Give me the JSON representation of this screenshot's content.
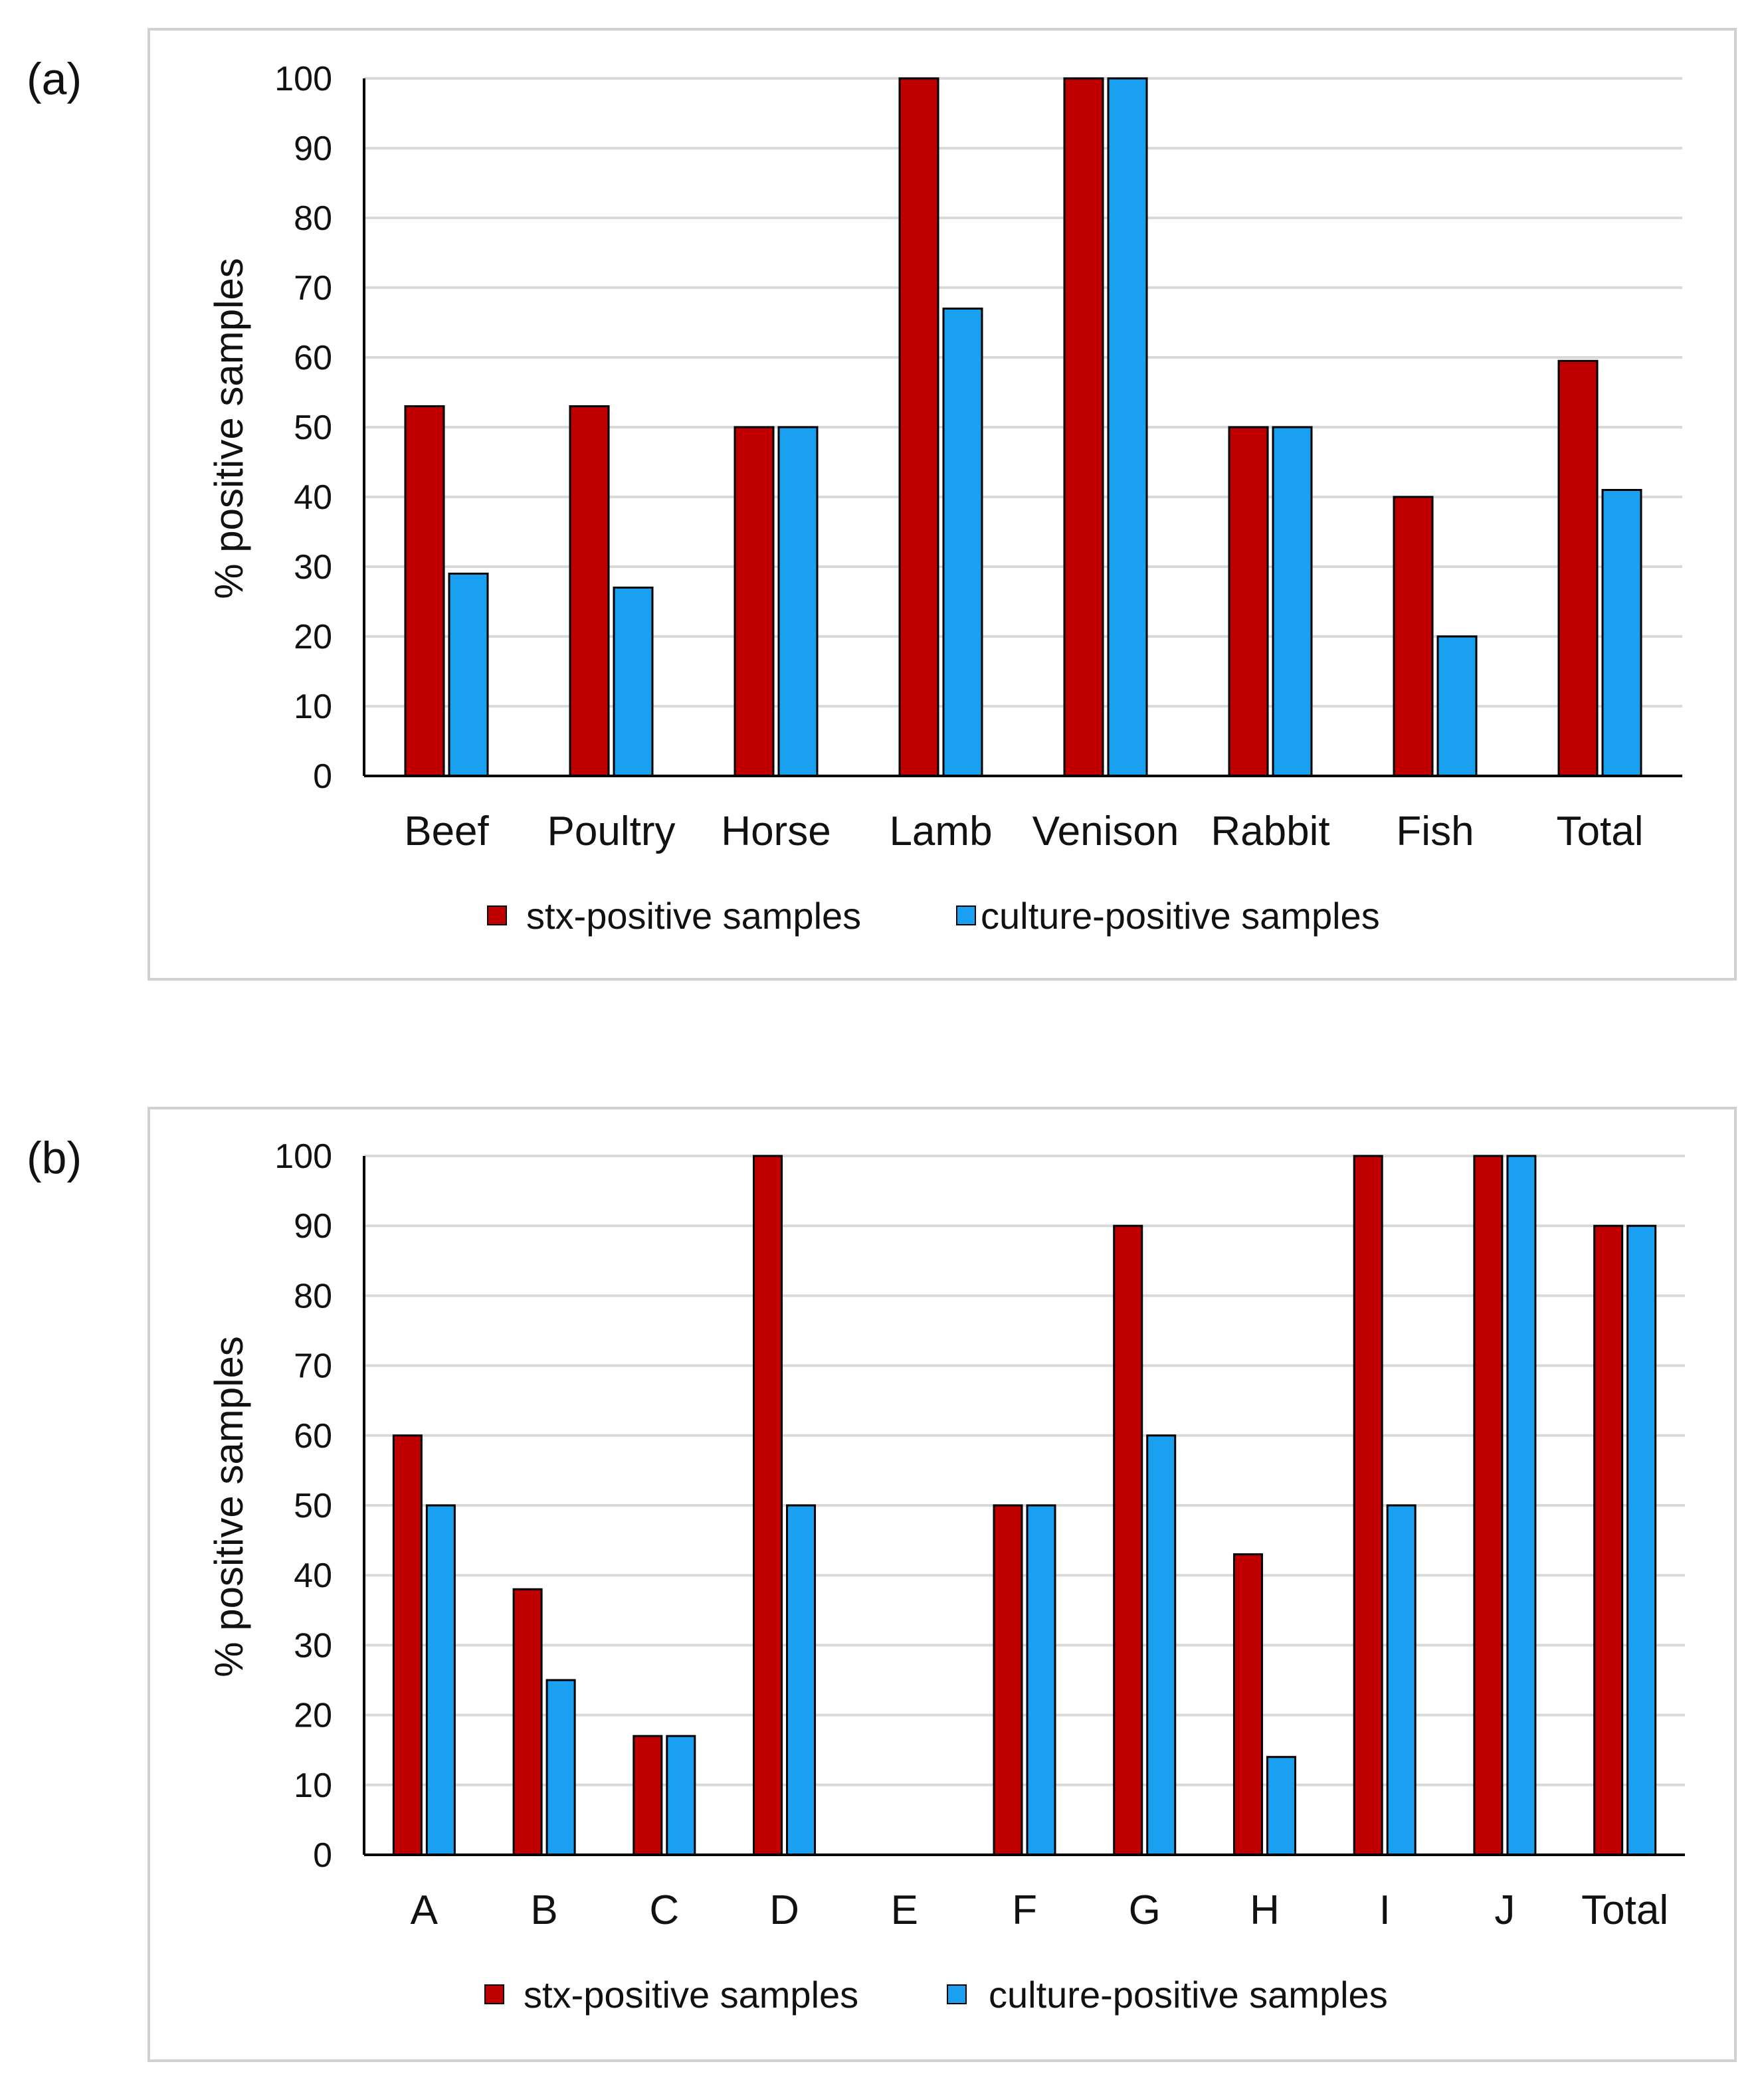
{
  "colors": {
    "stx": "#c00000",
    "culture": "#1aa0f0",
    "grid": "#d9d9d9",
    "axis": "#000000",
    "frame": "#d0d0d0"
  },
  "chart_data": [
    {
      "panel_label": "(a)",
      "type": "bar",
      "categories": [
        "Beef",
        "Poultry",
        "Horse",
        "Lamb",
        "Venison",
        "Rabbit",
        "Fish",
        "Total"
      ],
      "series": [
        {
          "name": "stx-positive samples",
          "values": [
            53,
            53,
            50,
            100,
            100,
            50,
            40,
            59.5
          ]
        },
        {
          "name": "culture-positive samples",
          "values": [
            29,
            27,
            50,
            67,
            100,
            50,
            20,
            41
          ]
        }
      ],
      "ylabel": "% positive samples",
      "ylim": [
        0,
        100
      ],
      "yticks": [
        0,
        10,
        20,
        30,
        40,
        50,
        60,
        70,
        80,
        90,
        100
      ],
      "grid": true,
      "legend": "bottom"
    },
    {
      "panel_label": "(b)",
      "type": "bar",
      "categories": [
        "A",
        "B",
        "C",
        "D",
        "E",
        "F",
        "G",
        "H",
        "I",
        "J",
        "Total"
      ],
      "series": [
        {
          "name": "stx-positive samples",
          "values": [
            60,
            38,
            17,
            100,
            0,
            50,
            90,
            43,
            100,
            100,
            90
          ]
        },
        {
          "name": "culture-positive samples",
          "values": [
            50,
            25,
            17,
            50,
            0,
            50,
            60,
            14,
            50,
            100,
            90
          ]
        }
      ],
      "ylabel": "% positive samples",
      "ylim": [
        0,
        100
      ],
      "yticks": [
        0,
        10,
        20,
        30,
        40,
        50,
        60,
        70,
        80,
        90,
        100
      ],
      "grid": true,
      "legend": "bottom"
    }
  ]
}
